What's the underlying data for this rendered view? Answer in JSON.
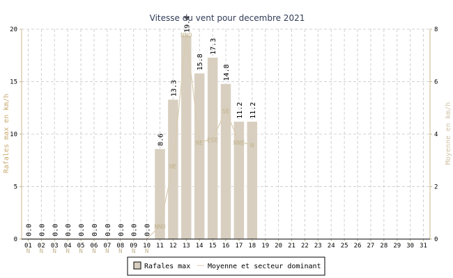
{
  "chart_data": {
    "type": "bar",
    "title": "Vitesse du vent pour decembre 2021",
    "ylabel_left": "Rafales max en km/h",
    "ylabel_right": "Moyenne en km/h",
    "ylim_left": [
      0,
      20
    ],
    "ylim_right": [
      0,
      8
    ],
    "yticks_left": [
      "0",
      "5",
      "10",
      "15",
      "20"
    ],
    "yticks_right": [
      "0",
      "2",
      "4",
      "6",
      "8"
    ],
    "categories": [
      "01",
      "02",
      "03",
      "04",
      "05",
      "06",
      "07",
      "08",
      "09",
      "10",
      "11",
      "12",
      "13",
      "14",
      "15",
      "16",
      "17",
      "18",
      "19",
      "20",
      "21",
      "22",
      "23",
      "24",
      "25",
      "26",
      "27",
      "28",
      "29",
      "30",
      "31"
    ],
    "grid": true,
    "series": [
      {
        "name": "Rafales max",
        "kind": "bar",
        "axis": "left",
        "values": [
          0.0,
          0.0,
          0.0,
          0.0,
          0.0,
          0.0,
          0.0,
          0.0,
          0.0,
          0.0,
          8.6,
          13.3,
          19.4,
          15.8,
          17.3,
          14.8,
          11.2,
          11.2,
          null,
          null,
          null,
          null,
          null,
          null,
          null,
          null,
          null,
          null,
          null,
          null,
          null
        ],
        "labels": [
          "0.0",
          "0.0",
          "0.0",
          "0.0",
          "0.0",
          "0.0",
          "0.0",
          "0.0",
          "0.0",
          "0.0",
          "8.6",
          "13.3",
          "19.4",
          "15.8",
          "17.3",
          "14.8",
          "11.2",
          "11.2",
          "",
          "",
          "",
          "",
          "",
          "",
          "",
          "",
          "",
          "",
          "",
          "",
          ""
        ]
      },
      {
        "name": "Moyenne et secteur dominant",
        "kind": "line",
        "axis": "right",
        "values": [
          0,
          0,
          0,
          0,
          0,
          0,
          0,
          0,
          0,
          0,
          0.5,
          2.8,
          7.8,
          3.7,
          3.8,
          4.9,
          3.7,
          3.6,
          null,
          null,
          null,
          null,
          null,
          null,
          null,
          null,
          null,
          null,
          null,
          null,
          null
        ],
        "sectors": [
          "N",
          "N",
          "N",
          "N",
          "N",
          "N",
          "N",
          "N",
          "N",
          "N",
          "NNO",
          "NE",
          "NNO",
          "NE",
          "ESE",
          "SE",
          "NNE",
          "N",
          "",
          "",
          "",
          "",
          "",
          "",
          "",
          "",
          "",
          "",
          "",
          "",
          ""
        ]
      }
    ],
    "legend_position": "bottom-center"
  },
  "colors": {
    "bar_fill": "#d8cfc0",
    "bar_fill_dark": "#cdc9b8",
    "line": "#d9ccb0",
    "left_axis_text": "#c9a96e",
    "right_axis_text": "#d1c3a6",
    "sector_text": "#c2b590",
    "grid": "#d0d0d0",
    "axis": "#c9b489",
    "title": "#2f3a55"
  }
}
